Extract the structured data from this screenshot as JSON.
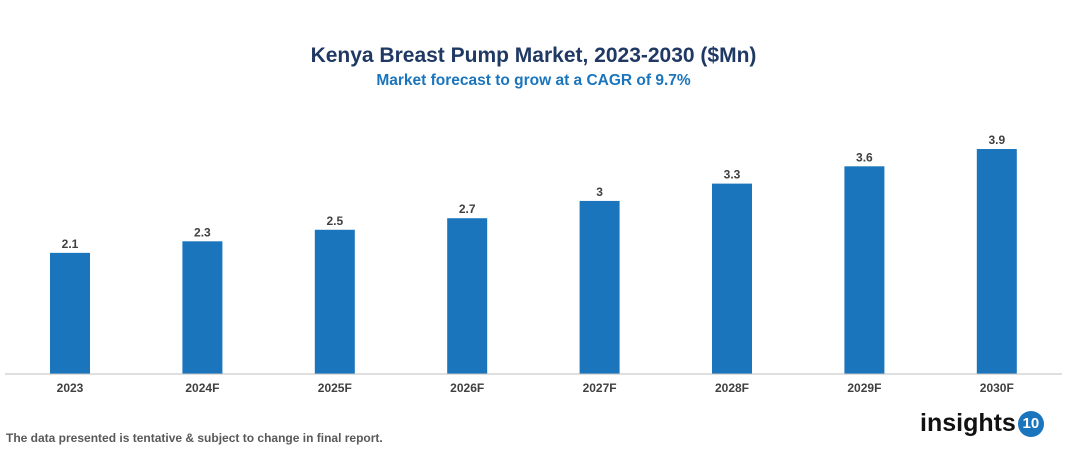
{
  "chart_data": {
    "type": "bar",
    "title": "Kenya Breast Pump Market, 2023-2030 ($Mn)",
    "subtitle": "Market forecast to grow at a CAGR of 9.7%",
    "categories": [
      "2023",
      "2024F",
      "2025F",
      "2026F",
      "2027F",
      "2028F",
      "2029F",
      "2030F"
    ],
    "values": [
      2.1,
      2.3,
      2.5,
      2.7,
      3,
      3.3,
      3.6,
      3.9
    ],
    "data_labels": [
      "2.1",
      "2.3",
      "2.5",
      "2.7",
      "3",
      "3.3",
      "3.6",
      "3.9"
    ],
    "xlabel": "",
    "ylabel": "",
    "ylim": [
      0,
      3.9
    ],
    "grid": false,
    "bar_color": "#1a75bc"
  },
  "footnote": "The data presented is tentative & subject to change in final report.",
  "logo": {
    "text": "insights",
    "badge": "10"
  }
}
